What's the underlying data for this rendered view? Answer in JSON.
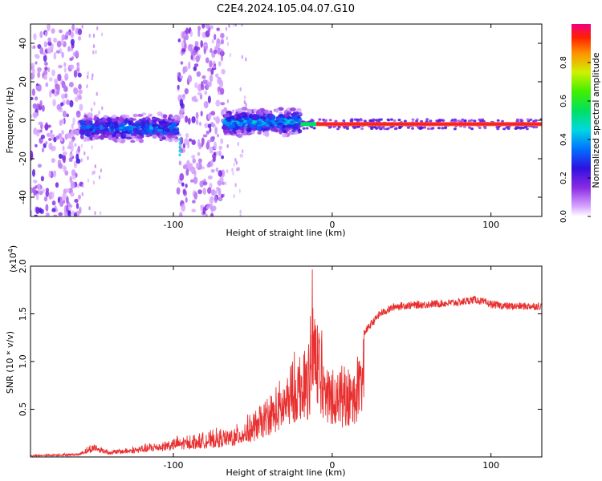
{
  "title": "C2E4.2024.105.04.07.G10",
  "colorbar": {
    "label": "Normalized spectral amplitude",
    "ticks": [
      "0.0",
      "0.2",
      "0.4",
      "0.6",
      "0.8"
    ],
    "tick_values": [
      0.0,
      0.2,
      0.4,
      0.6,
      0.8
    ]
  },
  "chart_data": [
    {
      "type": "heatmap",
      "title": "",
      "xlabel": "Height of straight line (km)",
      "ylabel": "Frequency (Hz)",
      "xlim": [
        -190,
        132
      ],
      "ylim": [
        -50,
        50
      ],
      "xticks": [
        -100,
        0,
        100
      ],
      "xtick_labels": [
        "-100",
        "0",
        "100"
      ],
      "yticks": [
        -40,
        -20,
        0,
        20,
        40
      ],
      "ytick_labels": [
        "-40",
        "-20",
        "0",
        "20",
        "40"
      ],
      "zlim": [
        0,
        1
      ],
      "features": [
        {
          "name": "noise-band",
          "x_range": [
            -190,
            -158
          ],
          "amplitude": 0.15
        },
        {
          "name": "noise-band",
          "x_range": [
            -97,
            -68
          ],
          "amplitude": 0.15
        },
        {
          "name": "signal-band",
          "x_range": [
            -158,
            -97
          ],
          "center_freq": -4,
          "amplitude": 0.35
        },
        {
          "name": "signal-band",
          "x_range": [
            -68,
            -20
          ],
          "center_freq": -1,
          "amplitude": 0.4
        },
        {
          "name": "tone-line",
          "x_range": [
            -20,
            132
          ],
          "center_freq": -2,
          "amplitude": 0.95
        }
      ]
    },
    {
      "type": "line",
      "title": "",
      "xlabel": "Height of straight line (km)",
      "ylabel": "SNR (10 * v/v)",
      "y_multiplier": "(x10",
      "y_multiplier_exp": "4",
      "y_multiplier_close": ")",
      "xlim": [
        -190,
        132
      ],
      "ylim": [
        0,
        2.0
      ],
      "xticks": [
        -100,
        0,
        100
      ],
      "xtick_labels": [
        "-100",
        "0",
        "100"
      ],
      "yticks": [
        0.5,
        1.0,
        1.5,
        2.0
      ],
      "ytick_labels": [
        "0.5",
        "1.0",
        "1.5",
        "2.0"
      ],
      "series_color": "#e83030",
      "envelope": {
        "x": [
          -190,
          -160,
          -150,
          -140,
          -120,
          -100,
          -80,
          -60,
          -50,
          -40,
          -30,
          -25,
          -20,
          -15,
          -12,
          -10,
          -5,
          0,
          5,
          10,
          15,
          20,
          30,
          40,
          60,
          80,
          90,
          100,
          110,
          120,
          132
        ],
        "y": [
          0.02,
          0.04,
          0.15,
          0.07,
          0.12,
          0.2,
          0.25,
          0.32,
          0.45,
          0.65,
          0.8,
          1.0,
          1.1,
          1.3,
          1.9,
          1.6,
          1.1,
          0.95,
          1.0,
          0.85,
          1.0,
          1.3,
          1.5,
          1.58,
          1.6,
          1.62,
          1.65,
          1.6,
          1.58,
          1.58,
          1.58
        ]
      }
    }
  ]
}
